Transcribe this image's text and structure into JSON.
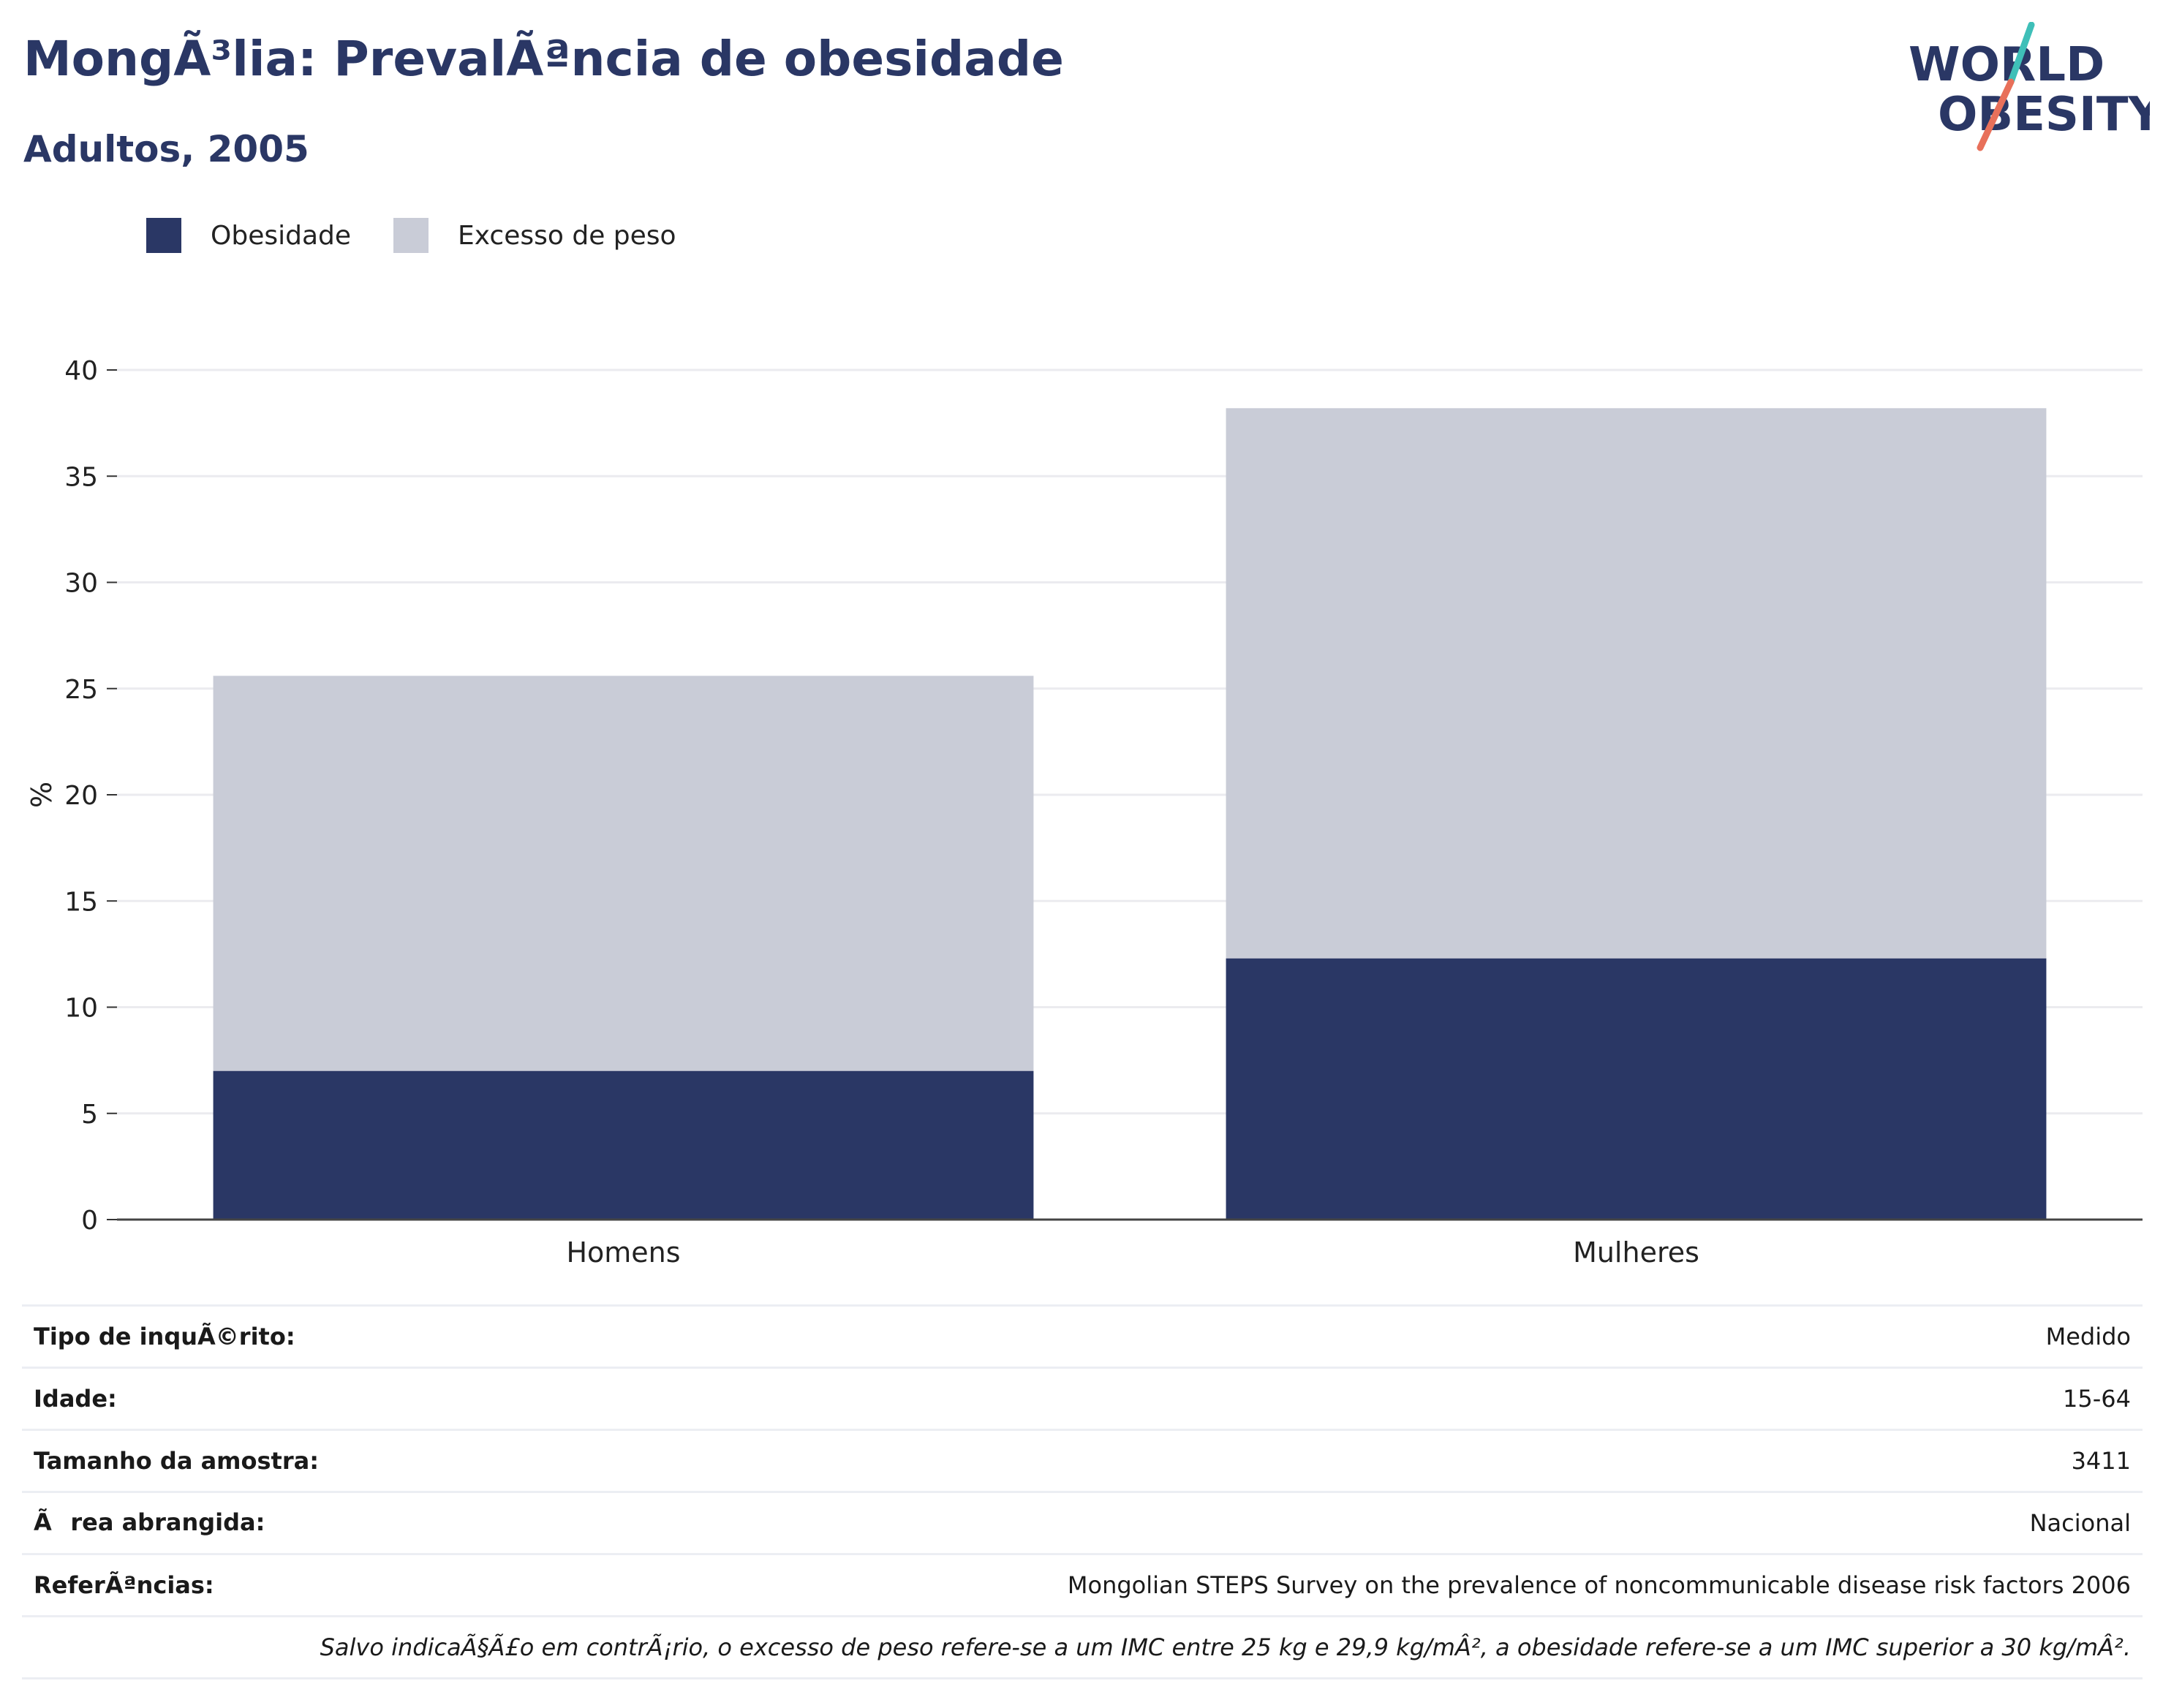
{
  "header": {
    "title": "MongÃ³lia: PrevalÃªncia de obesidade",
    "subtitle": "Adultos, 2005"
  },
  "logo": {
    "line1": "WORLD",
    "line2": "OBESITY",
    "colors": [
      "#2a3765",
      "#3fbfb8",
      "#e8705a"
    ]
  },
  "legend": [
    {
      "label": "Obesidade",
      "color": "#2a3765"
    },
    {
      "label": "Excesso de peso",
      "color": "#c9ccd7"
    }
  ],
  "chart_data": {
    "type": "bar",
    "stacked": true,
    "categories": [
      "Homens",
      "Mulheres"
    ],
    "series": [
      {
        "name": "Obesidade",
        "values": [
          7.0,
          12.3
        ],
        "color": "#2a3765"
      },
      {
        "name": "Excesso de peso",
        "values": [
          18.6,
          25.9
        ],
        "color": "#c9ccd7"
      }
    ],
    "ylabel": "%",
    "ylim": [
      0,
      40
    ],
    "yticks": [
      0,
      5,
      10,
      15,
      20,
      25,
      30,
      35,
      40
    ],
    "grid": true,
    "legend_position": "top-left"
  },
  "info": {
    "rows": [
      {
        "key": "Tipo de inquÃ©rito:",
        "value": "Medido"
      },
      {
        "key": "Idade:",
        "value": "15-64"
      },
      {
        "key": "Tamanho da amostra:",
        "value": "3411"
      },
      {
        "key": "Ãrea abrangida:",
        "value": "Nacional"
      },
      {
        "key": "ReferÃªncias:",
        "value": "Mongolian STEPS Survey on the prevalence of noncommunicable disease risk factors 2006"
      }
    ],
    "note": "Salvo indicaÃ§Ã£o em contrÃ¡rio, o excesso de peso refere-se a um IMC entre 25 kg e 29,9 kg/mÂ², a obesidade refere-se a um IMC superior a 30 kg/mÂ²."
  }
}
